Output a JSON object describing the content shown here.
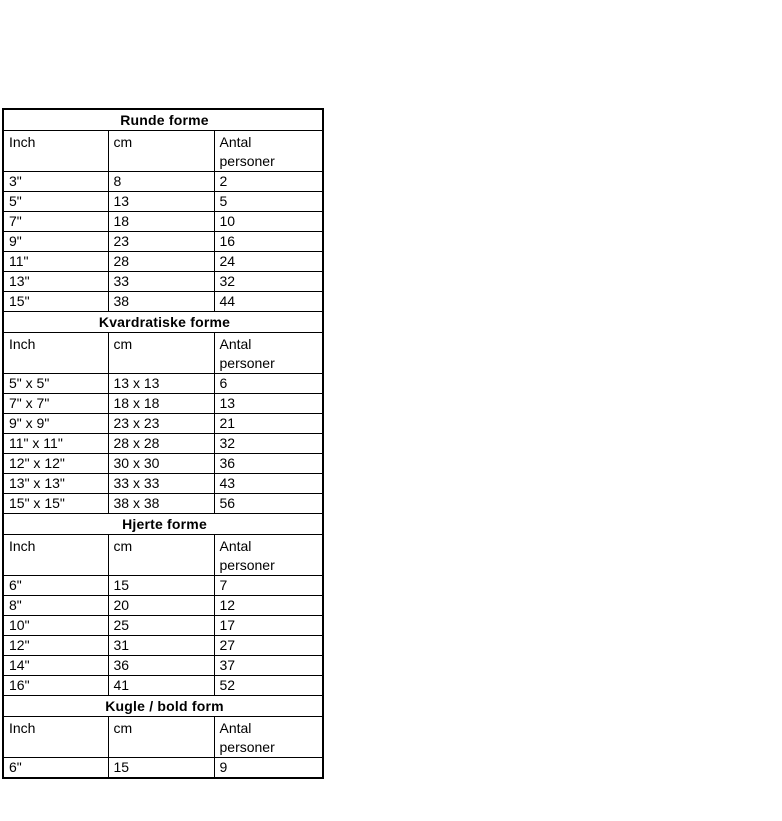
{
  "page": {
    "background": "#FFFFFF"
  },
  "colors": {
    "section_header_bg": "#FFFF99",
    "border": "#000000",
    "text": "#000000"
  },
  "table": {
    "column_headers": [
      "Inch",
      "cm",
      "Antal personer"
    ],
    "sections": [
      {
        "title": "Runde forme",
        "rows": [
          [
            "3\"",
            "8",
            "2"
          ],
          [
            "5\"",
            "13",
            "5"
          ],
          [
            "7\"",
            "18",
            "10"
          ],
          [
            "9\"",
            "23",
            "16"
          ],
          [
            "11\"",
            "28",
            "24"
          ],
          [
            "13\"",
            "33",
            "32"
          ],
          [
            "15\"",
            "38",
            "44"
          ]
        ]
      },
      {
        "title": "Kvardratiske forme",
        "rows": [
          [
            "5\" x 5\"",
            "13 x 13",
            "6"
          ],
          [
            "7\" x 7\"",
            "18 x 18",
            "13"
          ],
          [
            "9\" x 9\"",
            "23 x 23",
            "21"
          ],
          [
            "11\" x 11\"",
            "28 x 28",
            "32"
          ],
          [
            "12\" x 12\"",
            "30 x 30",
            "36"
          ],
          [
            "13\" x 13\"",
            "33 x 33",
            "43"
          ],
          [
            "15\" x 15\"",
            "38 x 38",
            "56"
          ]
        ]
      },
      {
        "title": "Hjerte forme",
        "rows": [
          [
            "6\"",
            "15",
            "7"
          ],
          [
            "8\"",
            "20",
            "12"
          ],
          [
            "10\"",
            "25",
            "17"
          ],
          [
            "12\"",
            "31",
            "27"
          ],
          [
            "14\"",
            "36",
            "37"
          ],
          [
            "16\"",
            "41",
            "52"
          ]
        ]
      },
      {
        "title": "Kugle / bold form",
        "rows": [
          [
            "6\"",
            "15",
            "9"
          ]
        ]
      }
    ]
  }
}
